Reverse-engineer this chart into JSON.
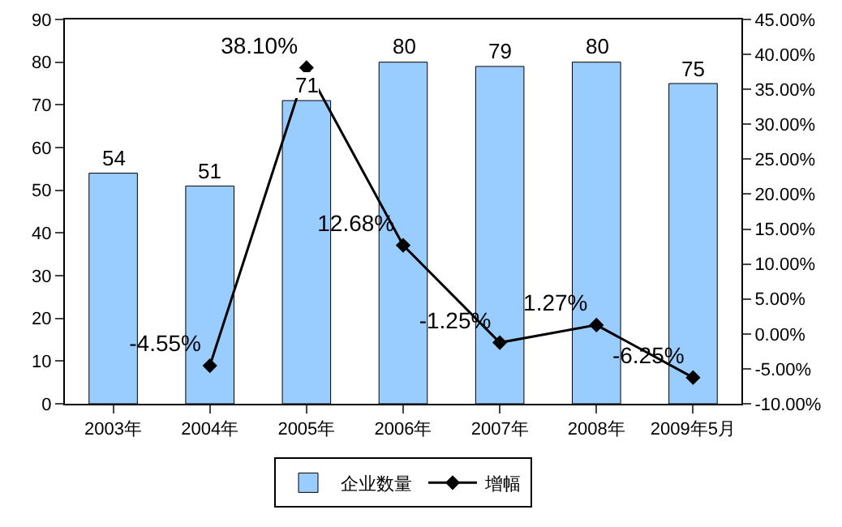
{
  "chart_data": {
    "type": "bar",
    "categories": [
      "2003年",
      "2004年",
      "2005年",
      "2006年",
      "2007年",
      "2008年",
      "2009年5月"
    ],
    "series": [
      {
        "name": "企业数量",
        "color": "#99ccff",
        "values": [
          54,
          51,
          71,
          80,
          79,
          80,
          75
        ],
        "value_labels": [
          "54",
          "51",
          "71",
          "80",
          "79",
          "80",
          "75"
        ]
      },
      {
        "name": "增幅",
        "type": "line",
        "axis": "y2",
        "color": "#000000",
        "marker": "diamond",
        "values": [
          null,
          -4.55,
          38.1,
          12.68,
          -1.25,
          1.27,
          -6.25
        ],
        "value_labels": [
          null,
          "-4.55%",
          "38.10%",
          "12.68%",
          "-1.25%",
          "1.27%",
          "-6.25%"
        ]
      }
    ],
    "ylim": [
      0,
      90
    ],
    "yticks": [
      0,
      10,
      20,
      30,
      40,
      50,
      60,
      70,
      80,
      90
    ],
    "y2lim": [
      -10,
      45
    ],
    "y2ticks": [
      {
        "value": -10,
        "label": "-10.00%"
      },
      {
        "value": -5,
        "label": "-5.00%"
      },
      {
        "value": 0,
        "label": "0.00%"
      },
      {
        "value": 5,
        "label": "5.00%"
      },
      {
        "value": 10,
        "label": "10.00%"
      },
      {
        "value": 15,
        "label": "15.00%"
      },
      {
        "value": 20,
        "label": "20.00%"
      },
      {
        "value": 25,
        "label": "25.00%"
      },
      {
        "value": 30,
        "label": "30.00%"
      },
      {
        "value": 35,
        "label": "35.00%"
      },
      {
        "value": 40,
        "label": "40.00%"
      },
      {
        "value": 45,
        "label": "45.00%"
      }
    ],
    "grid": false,
    "legend": "bottom"
  }
}
